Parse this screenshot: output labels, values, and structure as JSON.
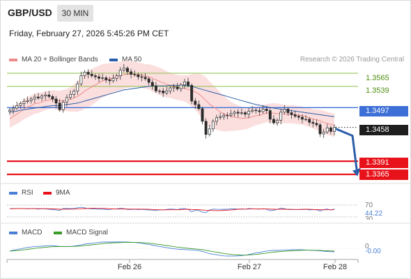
{
  "header": {
    "symbol": "GBP/USD",
    "timeframe": "30 MIN",
    "datetime": "Friday, February 27, 2026 5:45:26 PM CET",
    "credit": "Research © 2026 Trading Central"
  },
  "legend": {
    "ma20_label": "MA 20 + Bollinger Bands",
    "ma50_label": "MA 50",
    "ma20_color": "#f08a8a",
    "ma50_color": "#2a5ca8"
  },
  "chart_data": [
    {
      "type": "candlestick",
      "title": "",
      "x_labels": [
        "Feb 26",
        "Feb 27",
        "Feb 28"
      ],
      "ylim": [
        1.3355,
        1.3605
      ],
      "levels": [
        {
          "name": "resistance",
          "value": "1.3565",
          "color": "#8bbf4a"
        },
        {
          "name": "resistance",
          "value": "1.3539",
          "color": "#8bbf4a"
        },
        {
          "name": "pivot",
          "value": "1.3497",
          "color": "#3d6fd6"
        },
        {
          "name": "last",
          "value": "1.3458",
          "color": "#1e1e1e"
        },
        {
          "name": "support",
          "value": "1.3391",
          "color": "#e8121a"
        },
        {
          "name": "support",
          "value": "1.3365",
          "color": "#e8121a"
        }
      ],
      "close": [
        1.3492,
        1.3496,
        1.3501,
        1.3505,
        1.3509,
        1.3511,
        1.3514,
        1.3518,
        1.3516,
        1.352,
        1.3522,
        1.3519,
        1.3514,
        1.3506,
        1.3493,
        1.3508,
        1.3517,
        1.3523,
        1.353,
        1.3544,
        1.356,
        1.3567,
        1.3563,
        1.356,
        1.3558,
        1.3555,
        1.3556,
        1.3552,
        1.355,
        1.3555,
        1.356,
        1.3571,
        1.3575,
        1.3568,
        1.3563,
        1.3562,
        1.3558,
        1.3557,
        1.3554,
        1.3547,
        1.354,
        1.353,
        1.353,
        1.3526,
        1.353,
        1.3536,
        1.3538,
        1.3534,
        1.3542,
        1.3548,
        1.3541,
        1.351,
        1.3503,
        1.3495,
        1.347,
        1.3444,
        1.3455,
        1.347,
        1.3477,
        1.3479,
        1.3482,
        1.3482,
        1.3485,
        1.3488,
        1.3486,
        1.3487,
        1.3484,
        1.349,
        1.3492,
        1.3491,
        1.3489,
        1.3494,
        1.3491,
        1.3474,
        1.3467,
        1.3472,
        1.3488,
        1.3494,
        1.3487,
        1.3483,
        1.348,
        1.3478,
        1.3474,
        1.3474,
        1.3468,
        1.3466,
        1.3463,
        1.3445,
        1.3449,
        1.3457,
        1.345,
        1.3458
      ],
      "ma20": [
        1.3475,
        1.348,
        1.3484,
        1.3489,
        1.3494,
        1.3498,
        1.3501,
        1.3505,
        1.3506,
        1.3508,
        1.3511,
        1.3512,
        1.3514,
        1.3512,
        1.351,
        1.3511,
        1.3512,
        1.3513,
        1.3516,
        1.3519,
        1.3524,
        1.353,
        1.3534,
        1.3538,
        1.3542,
        1.3546,
        1.355,
        1.3552,
        1.3554,
        1.3556,
        1.3558,
        1.356,
        1.3562,
        1.3563,
        1.3563,
        1.3563,
        1.3562,
        1.3561,
        1.3559,
        1.3558,
        1.3555,
        1.3552,
        1.3549,
        1.3546,
        1.3543,
        1.3541,
        1.3539,
        1.3537,
        1.3536,
        1.3535,
        1.3533,
        1.3531,
        1.3528,
        1.3524,
        1.3518,
        1.3511,
        1.3504,
        1.3499,
        1.3494,
        1.3489,
        1.3485,
        1.3482,
        1.348,
        1.3478,
        1.3477,
        1.3476,
        1.3476,
        1.3477,
        1.3479,
        1.3481,
        1.3482,
        1.3484,
        1.3486,
        1.3486,
        1.3486,
        1.3485,
        1.3485,
        1.3484,
        1.3484,
        1.3484,
        1.3483,
        1.3482,
        1.3481,
        1.3479,
        1.3477,
        1.3475,
        1.3473,
        1.3471,
        1.3468,
        1.3466,
        1.3464,
        1.3462
      ],
      "ma50": [
        1.3488,
        1.3489,
        1.349,
        1.3492,
        1.3493,
        1.3494,
        1.3495,
        1.3496,
        1.3497,
        1.3498,
        1.3499,
        1.35,
        1.3501,
        1.3501,
        1.3501,
        1.3502,
        1.3503,
        1.3504,
        1.3505,
        1.3506,
        1.3508,
        1.351,
        1.3512,
        1.3514,
        1.3516,
        1.3518,
        1.352,
        1.3522,
        1.3524,
        1.3526,
        1.3528,
        1.353,
        1.3532,
        1.3533,
        1.3534,
        1.3535,
        1.3536,
        1.3537,
        1.3538,
        1.3539,
        1.354,
        1.354,
        1.354,
        1.354,
        1.354,
        1.3541,
        1.3541,
        1.3541,
        1.3541,
        1.3541,
        1.354,
        1.3539,
        1.3537,
        1.3535,
        1.3533,
        1.3531,
        1.3529,
        1.3527,
        1.3525,
        1.3523,
        1.3521,
        1.3519,
        1.3517,
        1.3515,
        1.3513,
        1.3511,
        1.3509,
        1.3507,
        1.3505,
        1.3503,
        1.3502,
        1.35,
        1.3499,
        1.3497,
        1.3496,
        1.3495,
        1.3494,
        1.3493,
        1.3492,
        1.3491,
        1.349,
        1.3489,
        1.3488,
        1.3487,
        1.3486,
        1.3485,
        1.3484,
        1.3483,
        1.3482,
        1.3481,
        1.348,
        1.3479
      ],
      "band_width": [
        0.0018,
        0.0019,
        0.0019,
        0.002,
        0.002,
        0.002,
        0.002,
        0.002,
        0.002,
        0.0019,
        0.0019,
        0.0018,
        0.0018,
        0.0019,
        0.002,
        0.0021,
        0.0022,
        0.0024,
        0.0027,
        0.003,
        0.0033,
        0.0035,
        0.0036,
        0.0036,
        0.0035,
        0.0034,
        0.0033,
        0.0032,
        0.0031,
        0.003,
        0.0029,
        0.0028,
        0.0028,
        0.0027,
        0.0026,
        0.0025,
        0.0024,
        0.0024,
        0.0024,
        0.0025,
        0.0026,
        0.0027,
        0.0027,
        0.0027,
        0.0026,
        0.0025,
        0.0025,
        0.0025,
        0.0025,
        0.0026,
        0.0028,
        0.0032,
        0.0036,
        0.004,
        0.0044,
        0.0046,
        0.0045,
        0.0043,
        0.0041,
        0.0038,
        0.0035,
        0.0032,
        0.0029,
        0.0027,
        0.0025,
        0.0023,
        0.0022,
        0.0021,
        0.002,
        0.0019,
        0.0018,
        0.0018,
        0.0018,
        0.0019,
        0.002,
        0.002,
        0.0019,
        0.0018,
        0.0018,
        0.0018,
        0.0018,
        0.0018,
        0.0018,
        0.0018,
        0.0019,
        0.0019,
        0.002,
        0.0022,
        0.0023,
        0.0023,
        0.0023,
        0.0023
      ],
      "forecast_arrow": {
        "from": 1.3458,
        "to": 1.3375
      }
    },
    {
      "type": "line",
      "title": "",
      "series": [
        {
          "name": "RSI",
          "color": "#4a7fd6"
        },
        {
          "name": "9MA",
          "color": "#e8121a"
        }
      ],
      "levels": [
        70,
        30
      ],
      "last_value": "44.22",
      "level_labels": [
        "70",
        "30"
      ]
    },
    {
      "type": "line",
      "title": "",
      "series": [
        {
          "name": "MACD",
          "color": "#4a7fd6"
        },
        {
          "name": "MACD Signal",
          "color": "#3a9a2a"
        }
      ],
      "zero_label": "0",
      "last_value": "-0.00"
    }
  ]
}
